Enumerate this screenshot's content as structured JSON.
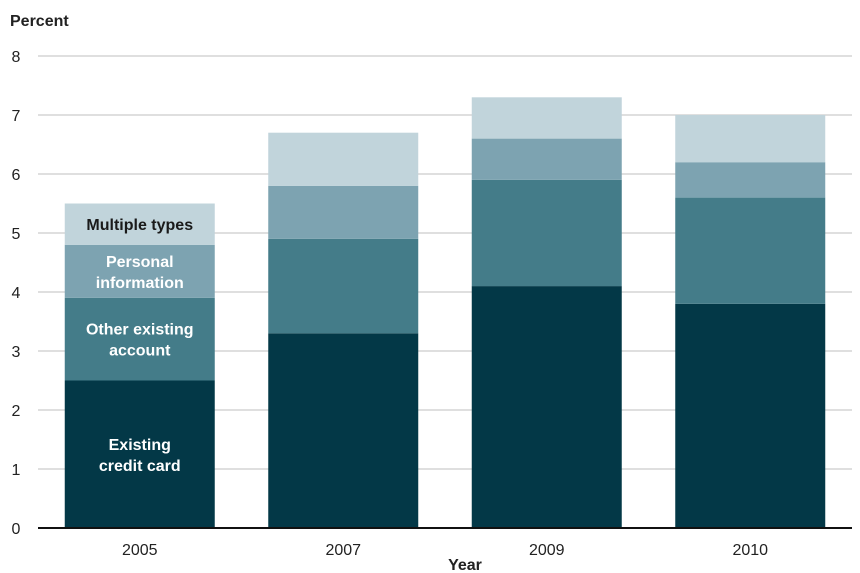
{
  "chart_data": {
    "type": "bar",
    "stacked": true,
    "ylabel": "Percent",
    "xlabel": "Year",
    "ylim": [
      0,
      8
    ],
    "yticks": [
      0,
      1,
      2,
      3,
      4,
      5,
      6,
      7,
      8
    ],
    "grid": true,
    "categories": [
      "2005",
      "2007",
      "2009",
      "2010"
    ],
    "series": [
      {
        "name": "Existing credit card",
        "label_lines": [
          "Existing",
          "credit card"
        ],
        "color": "#033847",
        "label_color": "#ffffff",
        "values": [
          2.5,
          3.3,
          4.1,
          3.8
        ]
      },
      {
        "name": "Other existing account",
        "label_lines": [
          "Other existing",
          "account"
        ],
        "color": "#447c89",
        "label_color": "#ffffff",
        "values": [
          1.4,
          1.6,
          1.8,
          1.8
        ]
      },
      {
        "name": "Personal information",
        "label_lines": [
          "Personal",
          "information"
        ],
        "color": "#7da3b1",
        "label_color": "#ffffff",
        "values": [
          0.9,
          0.9,
          0.7,
          0.6
        ]
      },
      {
        "name": "Multiple types",
        "label_lines": [
          "Multiple types"
        ],
        "color": "#c1d4db",
        "label_color": "#1a1a1a",
        "values": [
          0.7,
          0.9,
          0.7,
          0.8
        ]
      }
    ],
    "segment_labels_on_category": "2005"
  }
}
